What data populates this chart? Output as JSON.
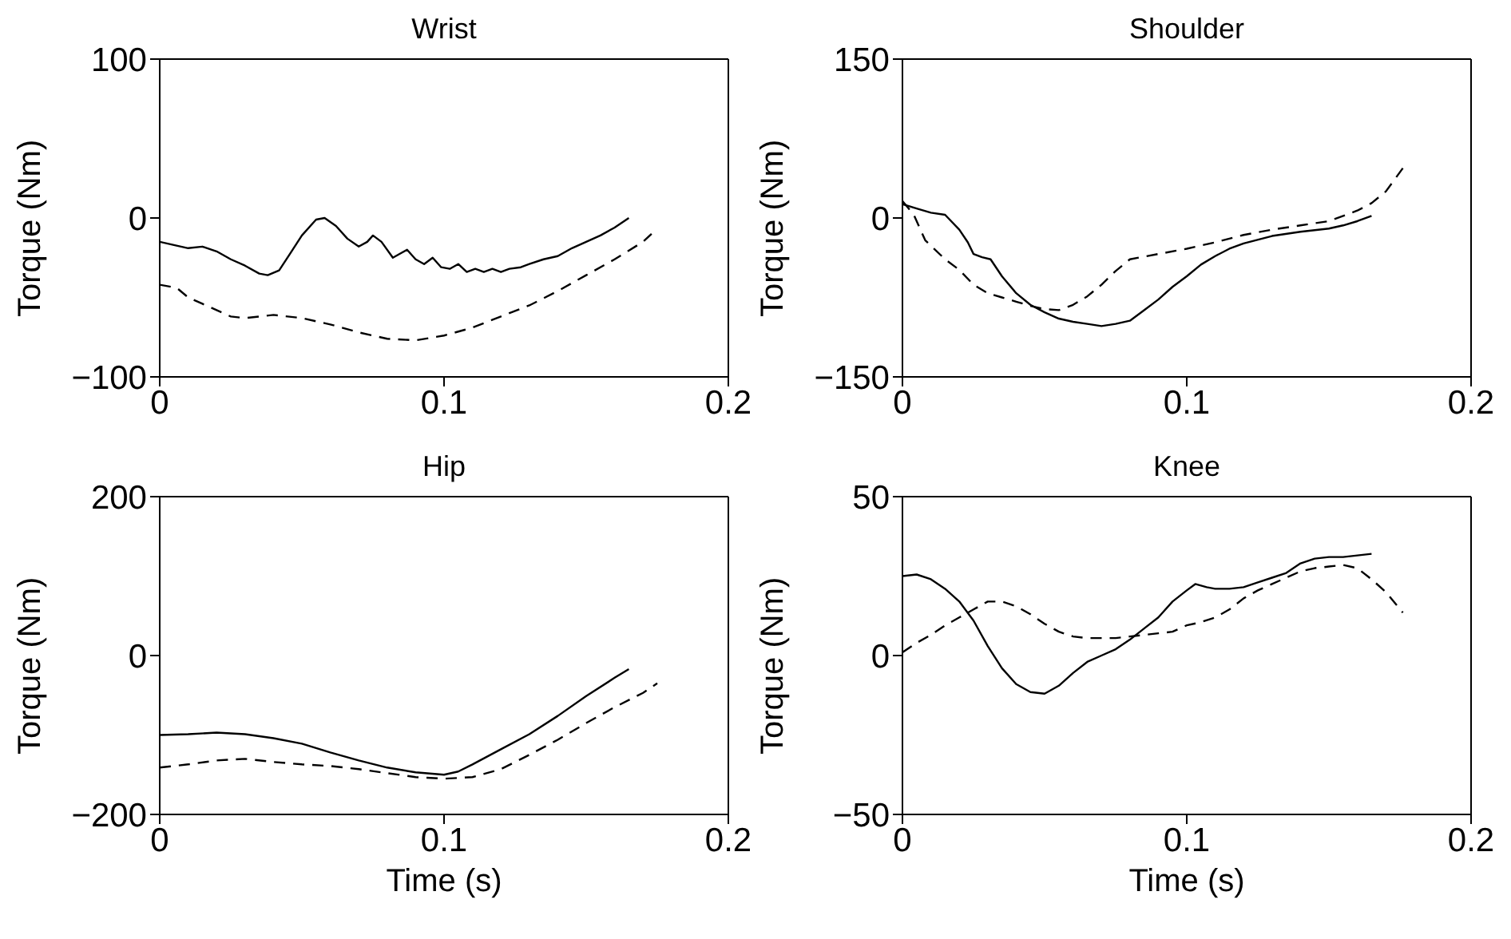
{
  "chart_data": [
    {
      "type": "line",
      "title": "Wrist",
      "ylabel": "Torque (Nm)",
      "xlim": [
        0,
        0.2
      ],
      "xticks": [
        0,
        0.1,
        0.2
      ],
      "ylim": [
        -100,
        100
      ],
      "yticks": [
        -100,
        0,
        100
      ],
      "series": [
        {
          "color": "#000000",
          "line_style": "solid",
          "x": [
            0,
            0.005,
            0.01,
            0.015,
            0.02,
            0.025,
            0.03,
            0.035,
            0.038,
            0.042,
            0.046,
            0.05,
            0.055,
            0.058,
            0.062,
            0.066,
            0.07,
            0.073,
            0.075,
            0.078,
            0.082,
            0.085,
            0.087,
            0.09,
            0.093,
            0.096,
            0.099,
            0.102,
            0.105,
            0.108,
            0.111,
            0.114,
            0.117,
            0.12,
            0.123,
            0.127,
            0.13,
            0.135,
            0.14,
            0.145,
            0.15,
            0.155,
            0.16,
            0.165
          ],
          "values": [
            -15,
            -17,
            -19,
            -18,
            -21,
            -26,
            -30,
            -35,
            -36,
            -33,
            -22,
            -11,
            -1,
            0,
            -5,
            -13,
            -18,
            -15,
            -11,
            -15,
            -25,
            -22,
            -20,
            -26,
            -29,
            -25,
            -31,
            -32,
            -29,
            -34,
            -32,
            -34,
            -32,
            -34,
            -32,
            -31,
            -29,
            -26,
            -24,
            -19,
            -15,
            -11,
            -6,
            0
          ]
        },
        {
          "color": "#000000",
          "line_style": "dashed",
          "x": [
            0,
            0.006,
            0.01,
            0.015,
            0.02,
            0.025,
            0.03,
            0.04,
            0.05,
            0.06,
            0.07,
            0.08,
            0.09,
            0.1,
            0.11,
            0.12,
            0.13,
            0.14,
            0.15,
            0.16,
            0.17,
            0.173
          ],
          "values": [
            -42,
            -44,
            -50,
            -54,
            -58,
            -62,
            -63,
            -61,
            -63,
            -67,
            -72,
            -76,
            -77,
            -74,
            -69,
            -62,
            -55,
            -46,
            -36,
            -26,
            -15,
            -10
          ]
        }
      ]
    },
    {
      "type": "line",
      "title": "Shoulder",
      "ylabel": "Torque (Nm)",
      "xlim": [
        0,
        0.2
      ],
      "xticks": [
        0,
        0.1,
        0.2
      ],
      "ylim": [
        -150,
        150
      ],
      "yticks": [
        -150,
        0,
        150
      ],
      "series": [
        {
          "color": "#000000",
          "line_style": "solid",
          "x": [
            0,
            0.005,
            0.01,
            0.015,
            0.02,
            0.023,
            0.025,
            0.028,
            0.031,
            0.035,
            0.04,
            0.045,
            0.05,
            0.055,
            0.06,
            0.065,
            0.07,
            0.075,
            0.08,
            0.085,
            0.09,
            0.095,
            0.1,
            0.105,
            0.11,
            0.115,
            0.12,
            0.13,
            0.14,
            0.15,
            0.155,
            0.16,
            0.165
          ],
          "values": [
            13,
            9,
            5,
            3,
            -11,
            -23,
            -34,
            -37,
            -39,
            -55,
            -71,
            -82,
            -89,
            -95,
            -98,
            -100,
            -102,
            -100,
            -97,
            -87,
            -77,
            -65,
            -55,
            -44,
            -36,
            -29,
            -24,
            -17,
            -13,
            -10,
            -7,
            -3,
            2
          ]
        },
        {
          "color": "#000000",
          "line_style": "dashed",
          "x": [
            0,
            0.004,
            0.008,
            0.015,
            0.02,
            0.025,
            0.03,
            0.035,
            0.04,
            0.045,
            0.05,
            0.055,
            0.06,
            0.065,
            0.07,
            0.075,
            0.08,
            0.09,
            0.1,
            0.11,
            0.12,
            0.13,
            0.14,
            0.15,
            0.16,
            0.165,
            0.17,
            0.176
          ],
          "values": [
            16,
            3,
            -21,
            -39,
            -49,
            -63,
            -71,
            -75,
            -79,
            -83,
            -86,
            -87,
            -82,
            -74,
            -63,
            -50,
            -39,
            -34,
            -29,
            -23,
            -16,
            -11,
            -7,
            -3,
            7,
            14,
            25,
            47
          ]
        }
      ]
    },
    {
      "type": "line",
      "title": "Hip",
      "xlabel": "Time (s)",
      "ylabel": "Torque (Nm)",
      "xlim": [
        0,
        0.2
      ],
      "xticks": [
        0,
        0.1,
        0.2
      ],
      "ylim": [
        -200,
        200
      ],
      "yticks": [
        -200,
        0,
        200
      ],
      "series": [
        {
          "color": "#000000",
          "line_style": "solid",
          "x": [
            0,
            0.01,
            0.02,
            0.03,
            0.04,
            0.05,
            0.06,
            0.07,
            0.08,
            0.09,
            0.1,
            0.105,
            0.11,
            0.12,
            0.13,
            0.14,
            0.15,
            0.16,
            0.165
          ],
          "values": [
            -100,
            -99,
            -97,
            -99,
            -104,
            -111,
            -122,
            -132,
            -141,
            -147,
            -150,
            -146,
            -137,
            -118,
            -99,
            -76,
            -51,
            -28,
            -17
          ]
        },
        {
          "color": "#000000",
          "line_style": "dashed",
          "x": [
            0,
            0.01,
            0.02,
            0.03,
            0.04,
            0.05,
            0.06,
            0.07,
            0.08,
            0.09,
            0.1,
            0.11,
            0.12,
            0.13,
            0.14,
            0.15,
            0.16,
            0.17,
            0.175
          ],
          "values": [
            -141,
            -137,
            -132,
            -130,
            -134,
            -137,
            -139,
            -143,
            -148,
            -153,
            -155,
            -153,
            -143,
            -125,
            -106,
            -85,
            -65,
            -47,
            -35
          ]
        }
      ]
    },
    {
      "type": "line",
      "title": "Knee",
      "xlabel": "Time (s)",
      "ylabel": "Torque (Nm)",
      "xlim": [
        0,
        0.2
      ],
      "xticks": [
        0,
        0.1,
        0.2
      ],
      "ylim": [
        -50,
        50
      ],
      "yticks": [
        -50,
        0,
        50
      ],
      "series": [
        {
          "color": "#000000",
          "line_style": "solid",
          "x": [
            0,
            0.005,
            0.01,
            0.015,
            0.02,
            0.025,
            0.03,
            0.035,
            0.04,
            0.045,
            0.05,
            0.055,
            0.06,
            0.065,
            0.07,
            0.075,
            0.08,
            0.085,
            0.09,
            0.095,
            0.1,
            0.103,
            0.107,
            0.11,
            0.115,
            0.12,
            0.125,
            0.13,
            0.135,
            0.14,
            0.145,
            0.15,
            0.155,
            0.16,
            0.165
          ],
          "values": [
            25,
            25.5,
            24,
            21,
            17,
            11,
            3,
            -4,
            -9,
            -11.5,
            -12,
            -9.5,
            -5.5,
            -2,
            0,
            2,
            5,
            8.5,
            12,
            17,
            20.5,
            22.5,
            21.5,
            21,
            21,
            21.5,
            23,
            24.5,
            26,
            29,
            30.5,
            31,
            31,
            31.5,
            32
          ]
        },
        {
          "color": "#000000",
          "line_style": "dashed",
          "x": [
            0,
            0.005,
            0.01,
            0.015,
            0.02,
            0.025,
            0.03,
            0.035,
            0.04,
            0.045,
            0.05,
            0.055,
            0.06,
            0.065,
            0.07,
            0.075,
            0.08,
            0.085,
            0.09,
            0.095,
            0.1,
            0.105,
            0.11,
            0.115,
            0.12,
            0.125,
            0.13,
            0.135,
            0.14,
            0.145,
            0.15,
            0.155,
            0.16,
            0.165,
            0.17,
            0.176
          ],
          "values": [
            1,
            4,
            6.5,
            9.5,
            12,
            14.5,
            17,
            17,
            15.5,
            13,
            10,
            7.5,
            6,
            5.5,
            5.5,
            5.5,
            6,
            6.5,
            7,
            7.5,
            9.5,
            10.5,
            12,
            14.5,
            18,
            20.5,
            22.5,
            24.5,
            26.5,
            27.5,
            28,
            28.5,
            27.5,
            24,
            20,
            13.5
          ]
        }
      ]
    }
  ]
}
